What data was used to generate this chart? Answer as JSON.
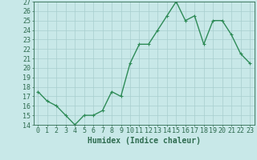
{
  "x": [
    0,
    1,
    2,
    3,
    4,
    5,
    6,
    7,
    8,
    9,
    10,
    11,
    12,
    13,
    14,
    15,
    16,
    17,
    18,
    19,
    20,
    21,
    22,
    23
  ],
  "y": [
    17.5,
    16.5,
    16.0,
    15.0,
    14.0,
    15.0,
    15.0,
    15.5,
    17.5,
    17.0,
    20.5,
    22.5,
    22.5,
    24.0,
    25.5,
    27.0,
    25.0,
    25.5,
    22.5,
    25.0,
    25.0,
    23.5,
    21.5,
    20.5
  ],
  "line_color": "#2e8b57",
  "marker": "+",
  "marker_size": 3,
  "marker_color": "#2e8b57",
  "line_width": 1.0,
  "bg_color": "#c8e8e8",
  "grid_color": "#a8cece",
  "xlabel": "Humidex (Indice chaleur)",
  "xlabel_fontsize": 7,
  "ylim": [
    14,
    27
  ],
  "xlim": [
    -0.5,
    23.5
  ],
  "yticks": [
    14,
    15,
    16,
    17,
    18,
    19,
    20,
    21,
    22,
    23,
    24,
    25,
    26,
    27
  ],
  "xticks": [
    0,
    1,
    2,
    3,
    4,
    5,
    6,
    7,
    8,
    9,
    10,
    11,
    12,
    13,
    14,
    15,
    16,
    17,
    18,
    19,
    20,
    21,
    22,
    23
  ],
  "tick_fontsize": 6,
  "tick_color": "#2e6b4f",
  "spine_color": "#2e6b4f"
}
